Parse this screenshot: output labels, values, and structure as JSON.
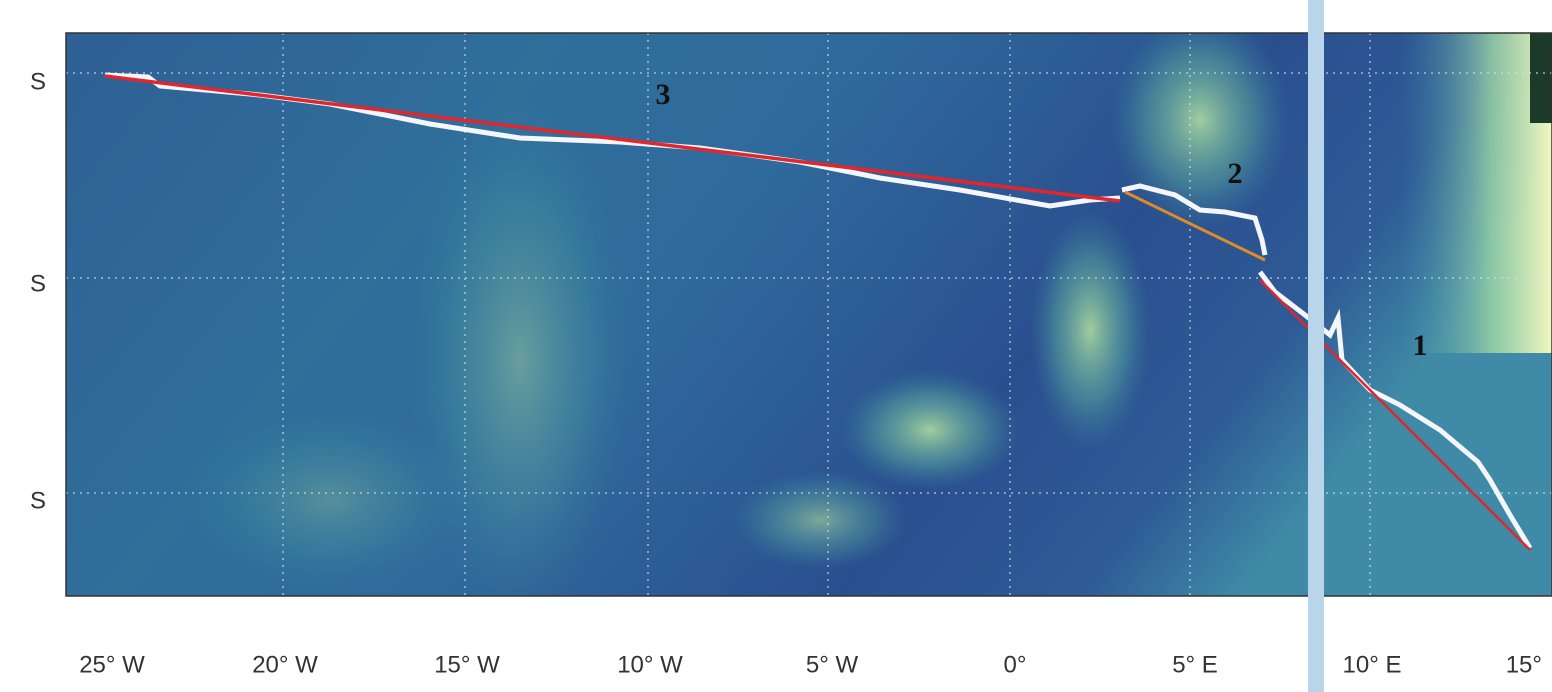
{
  "map": {
    "y_labels": [
      "S",
      "S",
      "S"
    ],
    "x_labels": [
      "25° W",
      "20° W",
      "15° W",
      "10° W",
      "5° W",
      "0°",
      "5° E",
      "10° E",
      "15°"
    ],
    "tracks": [
      {
        "label": "3"
      },
      {
        "label": "2"
      },
      {
        "label": "1"
      }
    ]
  }
}
